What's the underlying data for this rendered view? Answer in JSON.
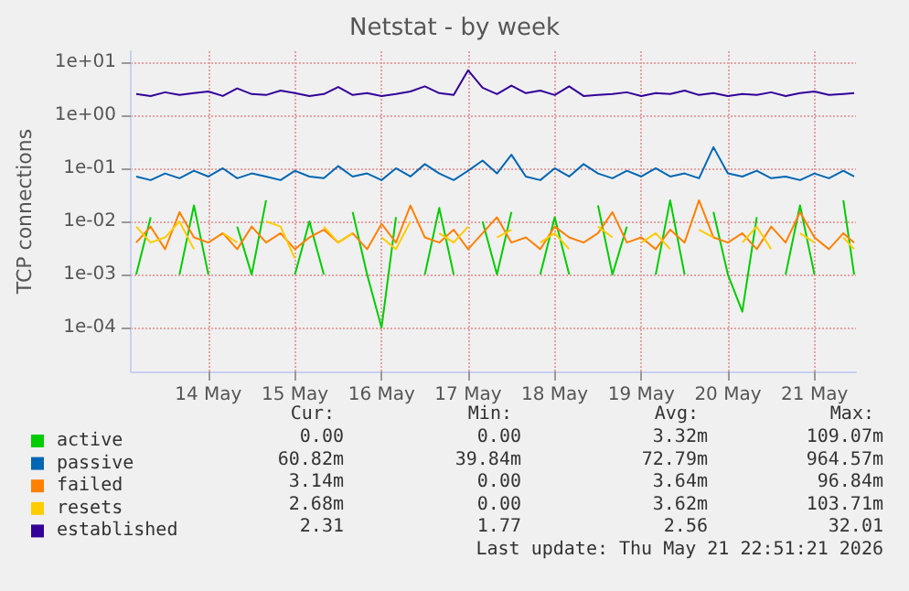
{
  "chart_data": {
    "type": "line",
    "title": "Netstat - by week",
    "ylabel": "TCP connections",
    "x": [
      "2026-05-13T16:00",
      "2026-05-13T20:00",
      "2026-05-14T00:00",
      "2026-05-14T04:00",
      "2026-05-14T08:00",
      "2026-05-14T12:00",
      "2026-05-14T16:00",
      "2026-05-14T20:00",
      "2026-05-15T00:00",
      "2026-05-15T04:00",
      "2026-05-15T08:00",
      "2026-05-15T12:00",
      "2026-05-15T16:00",
      "2026-05-15T20:00",
      "2026-05-16T00:00",
      "2026-05-16T04:00",
      "2026-05-16T08:00",
      "2026-05-16T12:00",
      "2026-05-16T16:00",
      "2026-05-16T20:00",
      "2026-05-17T00:00",
      "2026-05-17T04:00",
      "2026-05-17T08:00",
      "2026-05-17T12:00",
      "2026-05-17T16:00",
      "2026-05-17T20:00",
      "2026-05-18T00:00",
      "2026-05-18T04:00",
      "2026-05-18T08:00",
      "2026-05-18T12:00",
      "2026-05-18T16:00",
      "2026-05-18T20:00",
      "2026-05-19T00:00",
      "2026-05-19T04:00",
      "2026-05-19T08:00",
      "2026-05-19T12:00",
      "2026-05-19T16:00",
      "2026-05-19T20:00",
      "2026-05-20T00:00",
      "2026-05-20T04:00",
      "2026-05-20T08:00",
      "2026-05-20T12:00",
      "2026-05-20T16:00",
      "2026-05-20T20:00",
      "2026-05-21T00:00",
      "2026-05-21T04:00",
      "2026-05-21T08:00",
      "2026-05-21T12:00",
      "2026-05-21T16:00",
      "2026-05-21T20:00",
      "2026-05-21T23:00"
    ],
    "series": [
      {
        "name": "active",
        "color": "#00cc00",
        "values": [
          0.001,
          0.012,
          null,
          0.001,
          0.02,
          0.001,
          null,
          0.008,
          0.001,
          0.025,
          null,
          0.001,
          0.01,
          0.001,
          null,
          0.015,
          0.001,
          0.0001,
          0.012,
          null,
          0.001,
          0.018,
          0.001,
          null,
          0.01,
          0.001,
          0.015,
          null,
          0.001,
          0.012,
          0.001,
          null,
          0.02,
          0.001,
          0.008,
          null,
          0.001,
          0.025,
          0.001,
          null,
          0.015,
          0.001,
          0.0002,
          0.012,
          null,
          0.001,
          0.02,
          0.001,
          null,
          0.025,
          0.001
        ]
      },
      {
        "name": "passive",
        "color": "#0066b3",
        "values": [
          0.07,
          0.06,
          0.08,
          0.065,
          0.09,
          0.07,
          0.1,
          0.065,
          0.08,
          0.07,
          0.06,
          0.09,
          0.07,
          0.065,
          0.11,
          0.07,
          0.08,
          0.06,
          0.1,
          0.07,
          0.12,
          0.08,
          0.06,
          0.09,
          0.14,
          0.08,
          0.18,
          0.07,
          0.06,
          0.1,
          0.07,
          0.12,
          0.08,
          0.065,
          0.09,
          0.07,
          0.1,
          0.07,
          0.08,
          0.065,
          0.25,
          0.08,
          0.07,
          0.09,
          0.065,
          0.07,
          0.06,
          0.08,
          0.065,
          0.09,
          0.07
        ]
      },
      {
        "name": "failed",
        "color": "#ff8000",
        "values": [
          0.004,
          0.008,
          0.003,
          0.015,
          0.005,
          0.004,
          0.006,
          0.003,
          0.008,
          0.004,
          0.006,
          0.003,
          0.005,
          0.007,
          0.004,
          0.006,
          0.003,
          0.009,
          0.004,
          0.02,
          0.005,
          0.004,
          0.007,
          0.003,
          0.006,
          0.012,
          0.004,
          0.005,
          0.003,
          0.008,
          0.005,
          0.004,
          0.006,
          0.015,
          0.004,
          0.005,
          0.003,
          0.007,
          0.004,
          0.025,
          0.005,
          0.004,
          0.006,
          0.003,
          0.008,
          0.004,
          0.015,
          0.005,
          0.003,
          0.006,
          0.004
        ]
      },
      {
        "name": "resets",
        "color": "#ffcc00",
        "values": [
          0.008,
          0.004,
          0.005,
          0.01,
          0.003,
          null,
          0.006,
          0.004,
          null,
          0.01,
          0.008,
          0.002,
          null,
          0.008,
          0.004,
          0.006,
          null,
          0.005,
          0.003,
          0.01,
          null,
          0.006,
          0.004,
          0.008,
          null,
          0.005,
          0.007,
          null,
          0.004,
          0.006,
          0.003,
          null,
          0.008,
          0.005,
          null,
          0.004,
          0.006,
          0.003,
          null,
          0.007,
          0.005,
          null,
          0.004,
          0.008,
          0.003,
          null,
          0.006,
          0.004,
          null,
          0.005,
          0.003
        ]
      },
      {
        "name": "established",
        "color": "#330099",
        "values": [
          2.5,
          2.3,
          2.7,
          2.4,
          2.6,
          2.8,
          2.3,
          3.2,
          2.5,
          2.4,
          2.9,
          2.6,
          2.3,
          2.5,
          3.4,
          2.4,
          2.6,
          2.3,
          2.5,
          2.8,
          3.5,
          2.6,
          2.4,
          7.0,
          3.3,
          2.5,
          3.6,
          2.6,
          2.9,
          2.4,
          3.5,
          2.3,
          2.4,
          2.5,
          2.7,
          2.3,
          2.6,
          2.5,
          2.9,
          2.4,
          2.6,
          2.3,
          2.5,
          2.4,
          2.7,
          2.3,
          2.6,
          2.8,
          2.4,
          2.5,
          2.6
        ]
      }
    ],
    "log": "y",
    "ylim": [
      1.5e-05,
      16
    ],
    "yticks": [
      {
        "value": 0.0001,
        "label": "1e-04"
      },
      {
        "value": 0.001,
        "label": "1e-03"
      },
      {
        "value": 0.01,
        "label": "1e-02"
      },
      {
        "value": 0.1,
        "label": "1e-01"
      },
      {
        "value": 1,
        "label": "1e+00"
      },
      {
        "value": 10,
        "label": "1e+01"
      }
    ],
    "xlim": [
      "2026-05-13T14:30",
      "2026-05-21T23:30"
    ],
    "xticks": [
      {
        "value": "2026-05-14T12:00",
        "label": "14 May"
      },
      {
        "value": "2026-05-15T12:00",
        "label": "15 May"
      },
      {
        "value": "2026-05-16T12:00",
        "label": "16 May"
      },
      {
        "value": "2026-05-17T12:00",
        "label": "17 May"
      },
      {
        "value": "2026-05-18T12:00",
        "label": "18 May"
      },
      {
        "value": "2026-05-19T12:00",
        "label": "19 May"
      },
      {
        "value": "2026-05-20T12:00",
        "label": "20 May"
      },
      {
        "value": "2026-05-21T12:00",
        "label": "21 May"
      }
    ],
    "grid": true,
    "legend": "bottom",
    "marker": "none",
    "line_style": "solid",
    "annotations": [
      "Cur:",
      "Min:",
      "Avg:",
      "Max:",
      "0.00",
      "0.00",
      "3.32m",
      "109.07m",
      "60.82m",
      "39.84m",
      "72.79m",
      "964.57m",
      "3.14m",
      "0.00",
      "3.64m",
      "96.84m",
      "2.68m",
      "0.00",
      "3.62m",
      "103.71m",
      "2.31",
      "1.77",
      "2.56",
      "32.01",
      "Last update: Thu May 21 22:51:21 2026"
    ]
  }
}
